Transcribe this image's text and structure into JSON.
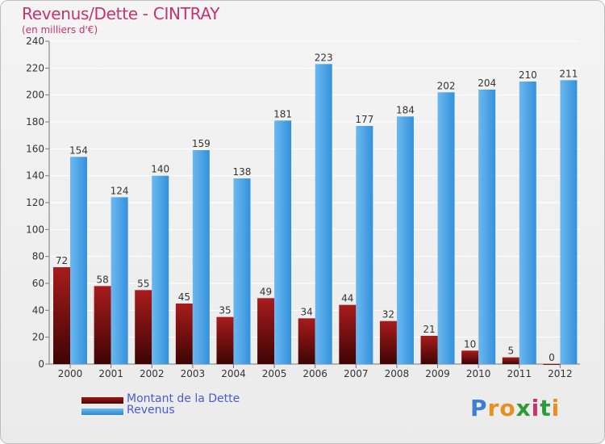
{
  "title": "Revenus/Dette - CINTRAY",
  "subtitle": "(en milliers d'€)",
  "chart_data": {
    "type": "bar",
    "categories": [
      "2000",
      "2001",
      "2002",
      "2003",
      "2004",
      "2005",
      "2006",
      "2007",
      "2008",
      "2009",
      "2010",
      "2011",
      "2012"
    ],
    "series": [
      {
        "name": "Montant de la Dette",
        "values": [
          72,
          58,
          55,
          45,
          35,
          49,
          34,
          44,
          32,
          21,
          10,
          5,
          0
        ],
        "color": "#7a1010"
      },
      {
        "name": "Revenus",
        "values": [
          154,
          124,
          140,
          159,
          138,
          181,
          223,
          177,
          184,
          202,
          204,
          210,
          211
        ],
        "color": "#4aa3e6"
      }
    ],
    "ylim": [
      0,
      240
    ],
    "yticks": [
      0,
      20,
      40,
      60,
      80,
      100,
      120,
      140,
      160,
      180,
      200,
      220,
      240
    ],
    "grid": true,
    "legend": "bottom-left",
    "data_labels": true
  },
  "logo": {
    "letters": [
      "P",
      "r",
      "o",
      "x",
      "i",
      "t",
      "i"
    ],
    "colors": [
      "#3c7fd1",
      "#e8901c",
      "#e8901c",
      "#2f9a3c",
      "#c8336b",
      "#2f9a3c",
      "#e8901c"
    ]
  }
}
